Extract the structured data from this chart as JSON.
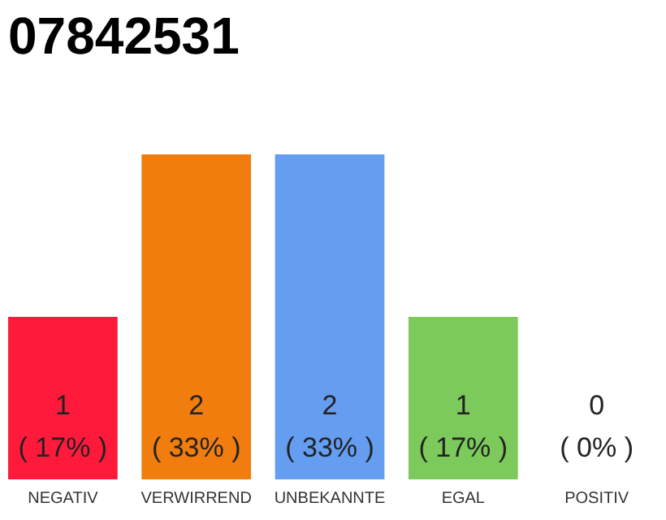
{
  "chart_data": {
    "type": "bar",
    "title": "07842531",
    "categories": [
      "NEGATIV",
      "VERWIRREND",
      "UNBEKANNTE",
      "EGAL",
      "POSITIV"
    ],
    "values": [
      1,
      2,
      2,
      1,
      0
    ],
    "colors": [
      "#ff1a3c",
      "#f07d0e",
      "#659df0",
      "#7cc95c",
      "#2bad4a"
    ],
    "tick_labels": "x",
    "value_labels": [
      "1\n( 17% )",
      "2\n( 33% )",
      "2\n( 33% )",
      "1\n( 17% )",
      "0\n( 0% )"
    ]
  }
}
